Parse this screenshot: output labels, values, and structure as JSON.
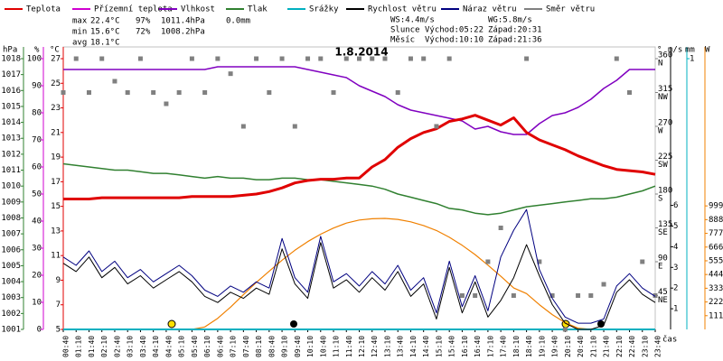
{
  "chart_data": {
    "type": "line",
    "title": "1.8.2014",
    "xlabel": "čas",
    "categories": [
      "00:40",
      "01:10",
      "01:40",
      "02:10",
      "02:40",
      "03:10",
      "03:40",
      "04:10",
      "04:40",
      "05:10",
      "05:40",
      "06:10",
      "06:40",
      "07:10",
      "07:40",
      "08:10",
      "08:40",
      "09:10",
      "09:40",
      "10:10",
      "10:40",
      "11:10",
      "11:40",
      "12:10",
      "12:40",
      "13:10",
      "13:40",
      "14:10",
      "14:40",
      "15:10",
      "15:40",
      "16:10",
      "16:40",
      "17:10",
      "17:40",
      "18:10",
      "18:40",
      "19:10",
      "19:40",
      "20:10",
      "20:40",
      "21:10",
      "21:40",
      "22:10",
      "22:40",
      "23:10",
      "23:40"
    ],
    "axes": {
      "press": {
        "label": "hPa",
        "color": "#308030",
        "lim": [
          1001,
          1018
        ],
        "ticks": [
          1001,
          1002,
          1003,
          1004,
          1005,
          1006,
          1007,
          1008,
          1009,
          1010,
          1011,
          1012,
          1013,
          1014,
          1015,
          1016,
          1017,
          1018
        ]
      },
      "hum": {
        "label": "%",
        "color": "#d000d0",
        "lim": [
          0,
          100
        ],
        "ticks": [
          0,
          10,
          20,
          30,
          40,
          50,
          60,
          70,
          80,
          90,
          100
        ]
      },
      "temp": {
        "label": "°C",
        "color": "#e00000",
        "lim": [
          5,
          27
        ],
        "ticks": [
          5,
          7,
          9,
          11,
          13,
          15,
          17,
          19,
          21,
          23,
          25,
          27
        ]
      },
      "dir": {
        "label": "°",
        "color": "#808080",
        "lim": [
          0,
          360
        ],
        "ticks": [
          45,
          90,
          135,
          180,
          225,
          270,
          315,
          360
        ],
        "tick_names": [
          "NE",
          "E",
          "SE",
          "S",
          "SW",
          "W",
          "NW",
          "N"
        ]
      },
      "wind": {
        "label": "m/s",
        "color": "#000000",
        "lim": [
          0,
          13.1
        ],
        "ticks": [
          1,
          2,
          3,
          4,
          5,
          6
        ]
      },
      "rain": {
        "label": "mm",
        "color": "#00b0c0",
        "lim": [
          0,
          1
        ],
        "ticks": [
          1
        ]
      },
      "solar": {
        "label": "W",
        "color": "#f08000",
        "lim": [
          0,
          2190
        ],
        "ticks": [
          111,
          222,
          333,
          444,
          555,
          666,
          777,
          888,
          999
        ]
      }
    },
    "series": [
      {
        "name": "Teplota",
        "color": "#e00000",
        "axis": "temp",
        "line_width": 3,
        "values": [
          15.6,
          15.6,
          15.6,
          15.7,
          15.7,
          15.7,
          15.7,
          15.7,
          15.7,
          15.7,
          15.8,
          15.8,
          15.8,
          15.8,
          15.9,
          16.0,
          16.2,
          16.5,
          16.9,
          17.1,
          17.2,
          17.2,
          17.3,
          17.3,
          18.2,
          18.8,
          19.8,
          20.5,
          21.0,
          21.3,
          21.9,
          22.1,
          22.4,
          22.0,
          21.6,
          22.2,
          21.0,
          20.4,
          20.0,
          19.6,
          19.1,
          18.7,
          18.3,
          18.0,
          17.9,
          17.8,
          17.6
        ]
      },
      {
        "name": "Přízemní teplota",
        "color": "#d000d0",
        "axis": "temp",
        "line_width": 1,
        "values": [
          null,
          null,
          null,
          null,
          null,
          null,
          null,
          null,
          null,
          null,
          null,
          null,
          null,
          null,
          null,
          null,
          null,
          null,
          null,
          null,
          null,
          null,
          null,
          null,
          null,
          null,
          null,
          null,
          null,
          null,
          null,
          null,
          null,
          null,
          null,
          null,
          null,
          null,
          null,
          null,
          null,
          null,
          null,
          null,
          null,
          null,
          null
        ]
      },
      {
        "name": "Vlhkost",
        "color": "#8000c0",
        "axis": "hum",
        "line_width": 1.5,
        "values": [
          96,
          96,
          96,
          96,
          96,
          96,
          96,
          96,
          96,
          96,
          96,
          96,
          97,
          97,
          97,
          97,
          97,
          97,
          97,
          96,
          95,
          94,
          93,
          90,
          88,
          86,
          83,
          81,
          80,
          79,
          78,
          77,
          74,
          75,
          73,
          72,
          72,
          76,
          79,
          80,
          82,
          85,
          89,
          92,
          96,
          96,
          96
        ]
      },
      {
        "name": "Tlak",
        "color": "#308030",
        "axis": "press",
        "line_width": 1.5,
        "values": [
          1011.4,
          1011.3,
          1011.2,
          1011.1,
          1011.0,
          1011.0,
          1010.9,
          1010.8,
          1010.8,
          1010.7,
          1010.6,
          1010.5,
          1010.6,
          1010.5,
          1010.5,
          1010.4,
          1010.4,
          1010.5,
          1010.5,
          1010.4,
          1010.4,
          1010.3,
          1010.2,
          1010.1,
          1010.0,
          1009.8,
          1009.5,
          1009.3,
          1009.1,
          1008.9,
          1008.6,
          1008.5,
          1008.3,
          1008.2,
          1008.3,
          1008.5,
          1008.7,
          1008.8,
          1008.9,
          1009.0,
          1009.1,
          1009.2,
          1009.2,
          1009.3,
          1009.5,
          1009.7,
          1010.0
        ]
      },
      {
        "name": "Srážky",
        "color": "#00b0c0",
        "axis": "rain",
        "line_width": 2,
        "values": [
          0,
          0,
          0,
          0,
          0,
          0,
          0,
          0,
          0,
          0,
          0,
          0,
          0,
          0,
          0,
          0,
          0,
          0,
          0,
          0,
          0,
          0,
          0,
          0,
          0,
          0,
          0,
          0,
          0,
          0,
          0,
          0,
          0,
          0,
          0,
          0,
          0,
          0,
          0,
          0,
          0,
          0,
          0,
          0,
          0,
          0,
          0
        ]
      },
      {
        "name": "Rychlost větru",
        "color": "#000000",
        "axis": "wind",
        "line_width": 1,
        "values": [
          3.2,
          2.8,
          3.5,
          2.5,
          3.0,
          2.2,
          2.6,
          2.0,
          2.4,
          2.8,
          2.3,
          1.6,
          1.3,
          1.8,
          1.5,
          2.0,
          1.7,
          3.9,
          2.2,
          1.5,
          4.2,
          2.0,
          2.4,
          1.8,
          2.5,
          1.9,
          2.8,
          1.6,
          2.2,
          0.5,
          3.0,
          0.8,
          2.3,
          0.6,
          1.4,
          2.5,
          4.1,
          2.6,
          1.2,
          0.3,
          0.0,
          0.0,
          0.2,
          1.8,
          2.4,
          1.7,
          1.3
        ]
      },
      {
        "name": "Náraz větru",
        "color": "#000080",
        "axis": "wind",
        "line_width": 1,
        "values": [
          3.5,
          3.1,
          3.8,
          2.8,
          3.3,
          2.5,
          2.9,
          2.3,
          2.7,
          3.1,
          2.6,
          1.9,
          1.6,
          2.1,
          1.8,
          2.3,
          2.0,
          4.4,
          2.5,
          1.8,
          4.5,
          2.3,
          2.7,
          2.1,
          2.8,
          2.2,
          3.1,
          1.9,
          2.5,
          0.8,
          3.3,
          1.1,
          2.6,
          0.9,
          3.5,
          4.8,
          5.8,
          2.9,
          1.5,
          0.6,
          0.3,
          0.3,
          0.5,
          2.1,
          2.7,
          2.0,
          1.6
        ]
      },
      {
        "name": "Směr větru",
        "color": "#808080",
        "axis": "dir",
        "marker": "square",
        "values": [
          315,
          360,
          315,
          360,
          330,
          315,
          360,
          315,
          300,
          315,
          360,
          315,
          360,
          340,
          270,
          360,
          315,
          360,
          270,
          360,
          360,
          315,
          360,
          360,
          360,
          360,
          315,
          360,
          360,
          270,
          360,
          45,
          45,
          90,
          135,
          45,
          360,
          90,
          45,
          0,
          45,
          45,
          60,
          360,
          315,
          90,
          45
        ]
      },
      {
        "color": "#f08000",
        "axis": "solar",
        "line_width": 1.2,
        "values": [
          0,
          0,
          0,
          0,
          0,
          0,
          0,
          0,
          0,
          0,
          0,
          20,
          90,
          180,
          280,
          380,
          470,
          560,
          640,
          710,
          770,
          820,
          860,
          885,
          895,
          898,
          890,
          870,
          840,
          800,
          745,
          680,
          605,
          520,
          430,
          335,
          290,
          200,
          120,
          55,
          10,
          0,
          0,
          0,
          0,
          0,
          0
        ]
      }
    ],
    "stats": [
      {
        "label": "max",
        "values": [
          "22.4°C",
          "97%",
          "1011.4hPa",
          "0.0mm"
        ]
      },
      {
        "label": "min",
        "values": [
          "15.6°C",
          "72%",
          "1008.2hPa"
        ]
      },
      {
        "label": "avg",
        "values": [
          "18.1°C"
        ]
      }
    ],
    "stat_colors": [
      "#e00000",
      "#a000a0",
      "#404040",
      "#00a0b0"
    ],
    "wind_info": [
      "WS:4.4m/s",
      "WG:5.8m/s"
    ],
    "sun": {
      "label": "Slunce",
      "rise": "Východ:05:22",
      "set": "Západ:20:31"
    },
    "moon": {
      "label": "Měsíc",
      "rise": "Východ:10:10",
      "set": "Západ:21:36"
    }
  }
}
